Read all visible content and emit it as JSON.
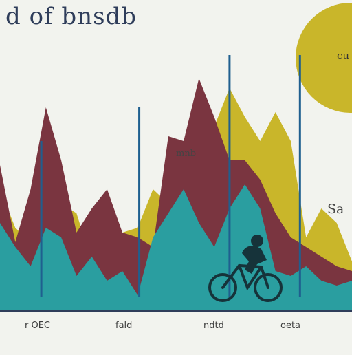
{
  "chart_data": {
    "type": "area",
    "title": "d of bnsdb",
    "subtitle": "",
    "xlabel": "",
    "ylabel": "",
    "x": [
      0,
      1,
      2,
      3,
      4,
      5,
      6,
      7,
      8,
      9,
      10,
      11,
      12,
      13,
      14,
      15,
      16,
      17,
      18,
      19,
      20,
      21,
      22,
      23
    ],
    "xlim": [
      0,
      23
    ],
    "ylim": [
      0,
      100
    ],
    "grid": false,
    "legend": "none",
    "series": [
      {
        "values": [
          50,
          34,
          28,
          40,
          44,
          40,
          20,
          38,
          32,
          34,
          50,
          44,
          40,
          56,
          76,
          92,
          80,
          70,
          82,
          70,
          30,
          42,
          36,
          20
        ]
      },
      {
        "values": [
          60,
          28,
          50,
          84,
          62,
          32,
          42,
          50,
          32,
          30,
          26,
          72,
          70,
          96,
          80,
          62,
          62,
          54,
          40,
          30,
          26,
          22,
          18,
          16
        ]
      },
      {
        "values": [
          36,
          26,
          18,
          34,
          30,
          14,
          22,
          12,
          16,
          6,
          30,
          40,
          50,
          36,
          26,
          42,
          52,
          42,
          16,
          14,
          18,
          12,
          10,
          12
        ]
      }
    ],
    "colors": [
      "#c9b62a",
      "#7a3540",
      "#2a9ea0"
    ],
    "markers": [
      2.7,
      9.1,
      15.0,
      19.6
    ],
    "marker_color": "#1f5f8f",
    "circle_color": "#c9b62a",
    "x_tick_labels": [
      "r OEC",
      "fald",
      "ndtd",
      "oeta"
    ],
    "annotations": [
      "mnb",
      "Sa"
    ],
    "circle_label": "cu",
    "icons": [
      "cyclist-icon"
    ]
  }
}
